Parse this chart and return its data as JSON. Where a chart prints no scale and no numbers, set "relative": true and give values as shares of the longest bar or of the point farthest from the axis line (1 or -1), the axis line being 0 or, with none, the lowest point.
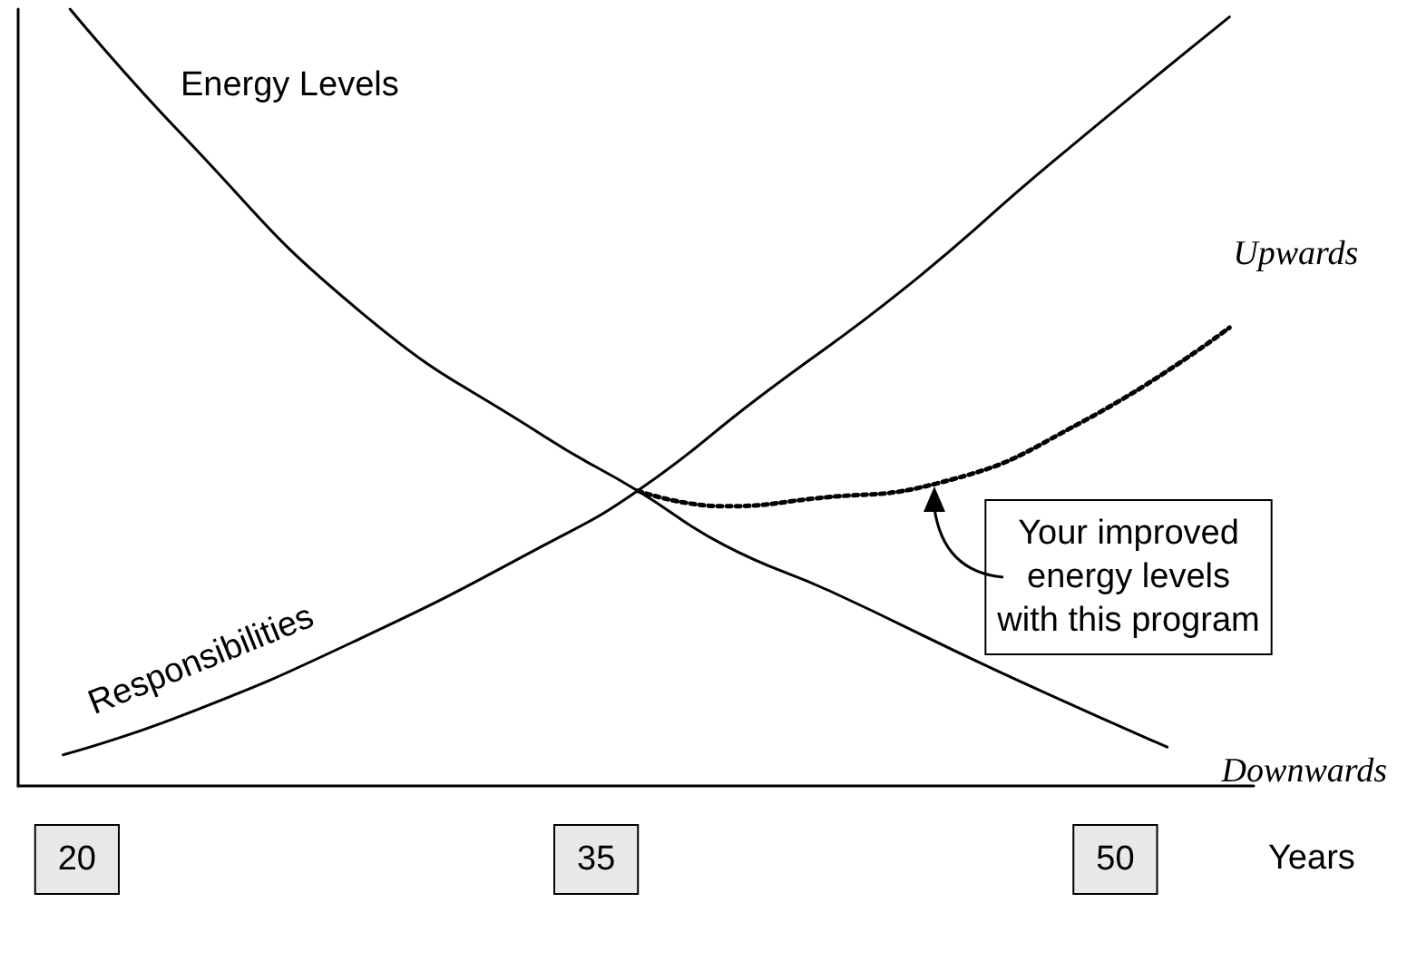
{
  "chart_data": {
    "type": "line",
    "relative": true,
    "xlabel": "Years",
    "xlim": [
      18.3,
      54
    ],
    "xticks": [
      20,
      35,
      50
    ],
    "grid": false,
    "legend": false,
    "marker": "none",
    "series": [
      {
        "name": "Energy Levels",
        "color": "#000000",
        "x": [
          19.8,
          23,
          28.2,
          33.5,
          36.2,
          38.7,
          41.8,
          46.5,
          51.5
        ],
        "values": [
          1,
          0.84,
          0.61,
          0.45,
          0.38,
          0.31,
          0.25,
          0.15,
          0.05
        ]
      },
      {
        "name": "Responsibilities",
        "color": "#000000",
        "x": [
          19.6,
          23,
          28.2,
          33.5,
          36.2,
          39.7,
          43.9,
          48.1,
          53.3
        ],
        "values": [
          0.04,
          0.09,
          0.19,
          0.31,
          0.38,
          0.5,
          0.64,
          0.8,
          0.99
        ]
      },
      {
        "color": "#000000",
        "line_style": "dotted",
        "x": [
          36.2,
          38.7,
          41.3,
          44.9,
          49.1,
          53.3
        ],
        "values": [
          0.38,
          0.36,
          0.37,
          0.39,
          0.47,
          0.59
        ]
      }
    ],
    "annotations": [
      {
        "text": "Upwards",
        "x": 53.3,
        "y": 0.59
      },
      {
        "text": "Downwards",
        "x": 51.5,
        "y": 0.05
      },
      "Your improved energy levels with this program"
    ]
  }
}
